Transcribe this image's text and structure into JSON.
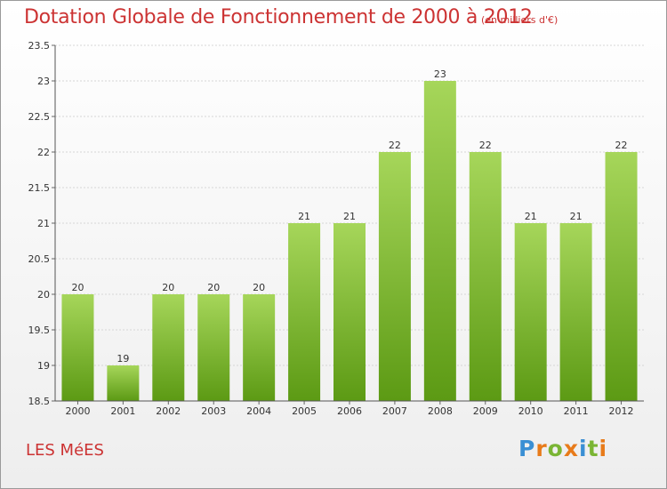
{
  "chart_data": {
    "type": "bar",
    "title": "Dotation Globale de Fonctionnement de 2000 à 2012",
    "unit": "(en milliers d'€)",
    "categories": [
      "2000",
      "2001",
      "2002",
      "2003",
      "2004",
      "2005",
      "2006",
      "2007",
      "2008",
      "2009",
      "2010",
      "2011",
      "2012"
    ],
    "values": [
      20,
      19,
      20,
      20,
      20,
      21,
      21,
      22,
      23,
      22,
      21,
      21,
      22
    ],
    "ylim": [
      18.5,
      23.5
    ],
    "yticks": [
      "18.5",
      "19",
      "19.5",
      "20",
      "20.5",
      "21",
      "21.5",
      "22",
      "22.5",
      "23",
      "23.5"
    ],
    "xlabel": "",
    "ylabel": "",
    "bar_color": "#7ab534"
  },
  "commune": "LES MéES",
  "logo": {
    "letters": [
      "P",
      "r",
      "o",
      "x",
      "i",
      "t",
      "i"
    ],
    "colors": [
      "#3a8fd4",
      "#e87b1a",
      "#7ab534",
      "#e87b1a",
      "#3a8fd4",
      "#7ab534",
      "#e87b1a"
    ]
  }
}
